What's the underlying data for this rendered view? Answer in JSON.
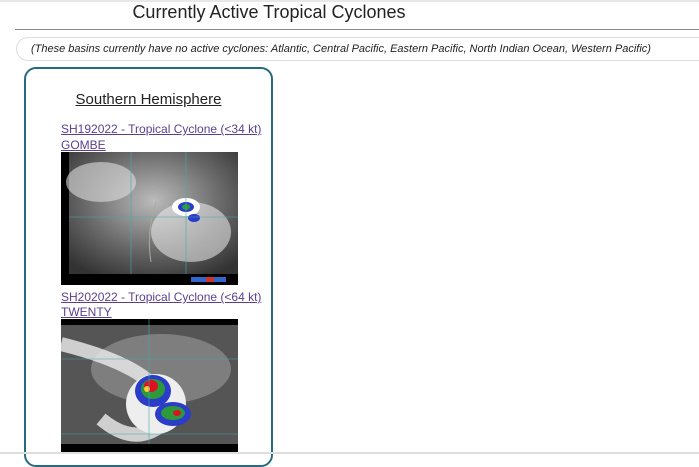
{
  "header": {
    "title": "Currently Active Tropical Cyclones"
  },
  "notice": "(These basins currently have no active cyclones: Atlantic, Central Pacific, Eastern Pacific, North Indian Ocean, Western Pacific)",
  "basin": {
    "title": "Southern Hemisphere",
    "storms": [
      {
        "link": "SH192022 - Tropical Cyclone (<34 kt)",
        "name": "GOMBE",
        "image": "satellite-ir-image"
      },
      {
        "link": "SH202022 - Tropical Cyclone (<64 kt)",
        "name": "TWENTY",
        "image": "satellite-ir-image"
      }
    ]
  },
  "colors": {
    "link": "#5b3f8e",
    "card_border": "#2a6a80"
  }
}
